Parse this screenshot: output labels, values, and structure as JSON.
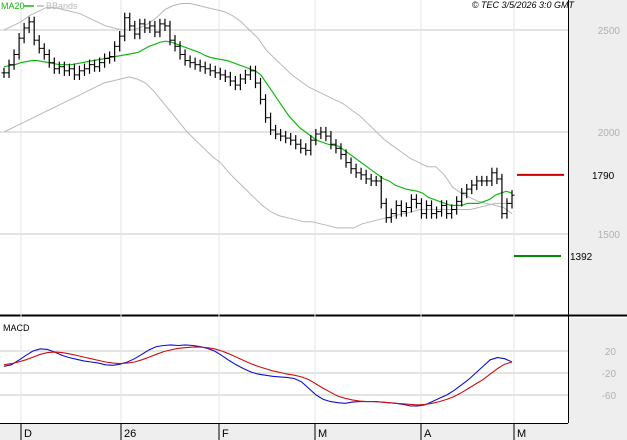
{
  "header": {
    "legend_ma": "MA20",
    "legend_bb": "BBands",
    "stamp": "© TEC 3/5/2026 3:0 GMT"
  },
  "colors": {
    "price": "#000000",
    "ma20": "#14b814",
    "bbands": "#b8b8b8",
    "resistance": "#cc0000",
    "support": "#008800",
    "macd": "#1010cc",
    "signal": "#cc1010",
    "grid": "#c8c8c8",
    "panel_bg": "#eeeeee"
  },
  "chart_data": [
    {
      "type": "ohlc",
      "title": "",
      "legend": [
        "MA20",
        "BBands"
      ],
      "y_ticks": [
        "2500",
        "2000",
        "1500"
      ],
      "ylim": [
        1150,
        2620
      ],
      "x_ticks": [
        "D",
        "26",
        "F",
        "M",
        "A",
        "M"
      ],
      "grid": true,
      "levels": [
        {
          "name": "resistance",
          "value": 1790,
          "label": "1790"
        },
        {
          "name": "support",
          "value": 1392,
          "label": "1392"
        }
      ],
      "close": [
        2290,
        2330,
        2380,
        2460,
        2510,
        2540,
        2450,
        2410,
        2380,
        2340,
        2310,
        2320,
        2300,
        2310,
        2280,
        2300,
        2310,
        2330,
        2320,
        2340,
        2360,
        2370,
        2420,
        2470,
        2560,
        2520,
        2480,
        2530,
        2510,
        2520,
        2490,
        2530,
        2520,
        2450,
        2420,
        2380,
        2350,
        2340,
        2330,
        2320,
        2310,
        2300,
        2290,
        2280,
        2270,
        2250,
        2230,
        2260,
        2280,
        2300,
        2240,
        2160,
        2070,
        2010,
        1990,
        1980,
        1970,
        1960,
        1940,
        1920,
        1910,
        1960,
        1990,
        2000,
        1980,
        1940,
        1920,
        1890,
        1850,
        1820,
        1800,
        1790,
        1770,
        1760,
        1760,
        1650,
        1580,
        1600,
        1640,
        1610,
        1630,
        1670,
        1650,
        1600,
        1640,
        1600,
        1610,
        1640,
        1600,
        1620,
        1660,
        1700,
        1720,
        1740,
        1760,
        1760,
        1760,
        1800,
        1770,
        1600,
        1650,
        1690
      ],
      "ma20": [
        2320,
        2325,
        2330,
        2340,
        2345,
        2350,
        2350,
        2345,
        2340,
        2335,
        2330,
        2330,
        2330,
        2335,
        2340,
        2345,
        2350,
        2355,
        2360,
        2365,
        2370,
        2375,
        2380,
        2385,
        2390,
        2405,
        2420,
        2430,
        2440,
        2445,
        2440,
        2430,
        2420,
        2410,
        2400,
        2390,
        2375,
        2365,
        2360,
        2355,
        2350,
        2340,
        2330,
        2320,
        2310,
        2300,
        2280,
        2240,
        2200,
        2160,
        2120,
        2080,
        2050,
        2020,
        2000,
        1980,
        1960,
        1950,
        1940,
        1935,
        1930,
        1910,
        1890,
        1870,
        1850,
        1830,
        1810,
        1790,
        1770,
        1760,
        1740,
        1730,
        1720,
        1715,
        1710,
        1700,
        1680,
        1670,
        1660,
        1650,
        1640,
        1640,
        1640,
        1650,
        1650,
        1650,
        1660,
        1670,
        1690,
        1700,
        1710,
        1700
      ],
      "bb_upper": [
        2500,
        2520,
        2540,
        2570,
        2590,
        2610,
        2610,
        2600,
        2590,
        2580,
        2560,
        2540,
        2520,
        2510,
        2500,
        2500,
        2510,
        2530,
        2560,
        2600,
        2620,
        2630,
        2630,
        2620,
        2610,
        2600,
        2590,
        2570,
        2540,
        2500,
        2460,
        2400,
        2360,
        2320,
        2280,
        2250,
        2220,
        2200,
        2180,
        2160,
        2140,
        2110,
        2080,
        2040,
        2000,
        1960,
        1930,
        1900,
        1870,
        1850,
        1830,
        1830,
        1790,
        1730,
        1700,
        1680,
        1660,
        1650,
        1640,
        1630,
        1600
      ],
      "bb_lower": [
        2000,
        2020,
        2040,
        2060,
        2080,
        2100,
        2120,
        2140,
        2160,
        2180,
        2200,
        2220,
        2240,
        2250,
        2260,
        2270,
        2260,
        2240,
        2200,
        2150,
        2100,
        2050,
        2000,
        1960,
        1920,
        1880,
        1850,
        1800,
        1760,
        1720,
        1680,
        1640,
        1610,
        1590,
        1580,
        1570,
        1560,
        1560,
        1550,
        1540,
        1530,
        1530,
        1530,
        1550,
        1560,
        1570,
        1580,
        1590,
        1600,
        1610,
        1620,
        1620,
        1620,
        1620,
        1620,
        1620,
        1620,
        1630,
        1640,
        1650,
        1650,
        1650
      ]
    },
    {
      "type": "line",
      "title": "MACD",
      "y_ticks": [
        "20",
        "-20",
        "-60"
      ],
      "ylim": [
        -90,
        40
      ],
      "grid": true,
      "series": [
        {
          "name": "MACD",
          "values": [
            -8,
            -5,
            3,
            12,
            20,
            24,
            23,
            18,
            12,
            8,
            5,
            2,
            0,
            -2,
            -5,
            -6,
            -4,
            0,
            6,
            14,
            22,
            28,
            30,
            31,
            30,
            31,
            30,
            28,
            25,
            20,
            12,
            3,
            -5,
            -12,
            -18,
            -22,
            -24,
            -26,
            -27,
            -28,
            -30,
            -36,
            -48,
            -60,
            -68,
            -72,
            -74,
            -75,
            -73,
            -72,
            -72,
            -72,
            -73,
            -74,
            -75,
            -77,
            -80,
            -80,
            -78,
            -72,
            -66,
            -60,
            -52,
            -42,
            -32,
            -20,
            -8,
            4,
            8,
            6,
            0
          ]
        },
        {
          "name": "Signal",
          "values": [
            -5,
            -3,
            0,
            4,
            9,
            14,
            17,
            18,
            17,
            15,
            12,
            9,
            6,
            3,
            0,
            -2,
            -3,
            -2,
            0,
            4,
            9,
            14,
            19,
            22,
            25,
            26,
            27,
            27,
            26,
            24,
            20,
            15,
            9,
            3,
            -3,
            -8,
            -12,
            -16,
            -19,
            -22,
            -24,
            -27,
            -32,
            -40,
            -48,
            -55,
            -62,
            -66,
            -69,
            -71,
            -72,
            -72,
            -73,
            -74,
            -75,
            -76,
            -77,
            -78,
            -77,
            -75,
            -72,
            -68,
            -63,
            -56,
            -48,
            -40,
            -32,
            -22,
            -12,
            -4,
            0
          ]
        }
      ]
    }
  ]
}
